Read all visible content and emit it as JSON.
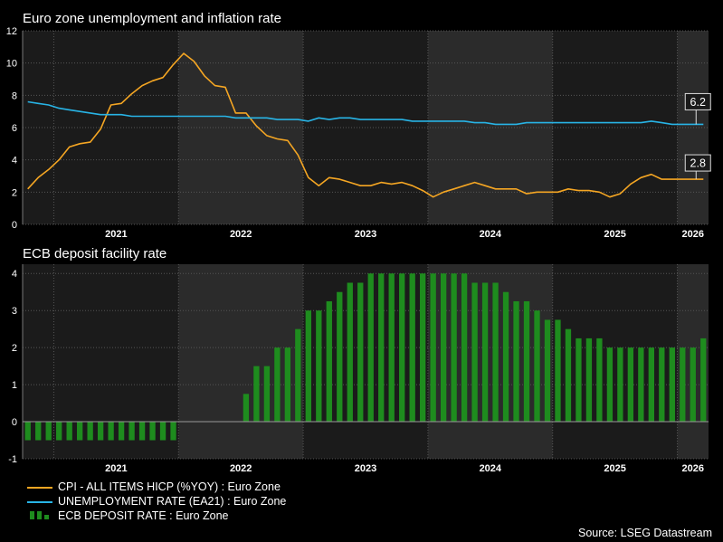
{
  "chart_data": [
    {
      "type": "line",
      "title": "Euro zone unemployment and inflation rate",
      "ylim": [
        0,
        12
      ],
      "yticks": [
        "0",
        "2",
        "4",
        "6",
        "8",
        "10",
        "12"
      ],
      "x_labels": [
        "2021",
        "2022",
        "2023",
        "2024",
        "2025",
        "2026"
      ],
      "x_range": [
        "2020-10",
        "2026-03"
      ],
      "series": [
        {
          "name": "CPI - ALL ITEMS HICP (%YOY) : Euro Zone",
          "color": "#f5a623",
          "last_value_label": "2.8",
          "x": [
            "2020-10",
            "2020-11",
            "2020-12",
            "2021-01",
            "2021-02",
            "2021-03",
            "2021-04",
            "2021-05",
            "2021-06",
            "2021-07",
            "2021-08",
            "2021-09",
            "2021-10",
            "2021-11",
            "2021-12",
            "2022-01",
            "2022-02",
            "2022-03",
            "2022-04",
            "2022-05",
            "2022-06",
            "2022-07",
            "2022-08",
            "2022-09",
            "2022-10",
            "2022-11",
            "2022-12",
            "2023-01",
            "2023-02",
            "2023-03",
            "2023-04",
            "2023-05",
            "2023-06",
            "2023-07",
            "2023-08",
            "2023-09",
            "2023-10",
            "2023-11",
            "2023-12",
            "2024-01",
            "2024-02",
            "2024-03",
            "2024-04",
            "2024-05",
            "2024-06",
            "2024-07",
            "2024-08",
            "2024-09",
            "2024-10",
            "2024-11",
            "2024-12",
            "2025-01",
            "2025-02",
            "2025-03",
            "2025-04",
            "2025-05",
            "2025-06",
            "2025-07",
            "2025-08",
            "2025-09",
            "2025-10",
            "2025-11",
            "2025-12",
            "2026-01",
            "2026-02",
            "2026-03"
          ],
          "values": [
            2.2,
            2.9,
            3.4,
            4.0,
            4.8,
            5.0,
            5.1,
            5.9,
            7.4,
            7.5,
            8.1,
            8.6,
            8.9,
            9.1,
            9.9,
            10.6,
            10.1,
            9.2,
            8.6,
            8.5,
            6.9,
            6.9,
            6.1,
            5.5,
            5.3,
            5.2,
            4.3,
            2.9,
            2.4,
            2.9,
            2.8,
            2.6,
            2.4,
            2.4,
            2.6,
            2.5,
            2.6,
            2.4,
            2.1,
            1.7,
            2.0,
            2.2,
            2.4,
            2.6,
            2.4,
            2.2,
            2.2,
            2.2,
            1.9,
            2.0,
            2.0,
            2.0,
            2.2,
            2.1,
            2.1,
            2.0,
            1.7,
            1.9,
            2.5,
            2.9,
            3.1,
            2.8,
            2.8,
            2.8,
            2.8,
            2.8
          ]
        },
        {
          "name": "UNEMPLOYMENT RATE (EA21) : Euro Zone",
          "color": "#28b4e6",
          "last_value_label": "6.2",
          "x": [
            "2020-10",
            "2020-11",
            "2020-12",
            "2021-01",
            "2021-02",
            "2021-03",
            "2021-04",
            "2021-05",
            "2021-06",
            "2021-07",
            "2021-08",
            "2021-09",
            "2021-10",
            "2021-11",
            "2021-12",
            "2022-01",
            "2022-02",
            "2022-03",
            "2022-04",
            "2022-05",
            "2022-06",
            "2022-07",
            "2022-08",
            "2022-09",
            "2022-10",
            "2022-11",
            "2022-12",
            "2023-01",
            "2023-02",
            "2023-03",
            "2023-04",
            "2023-05",
            "2023-06",
            "2023-07",
            "2023-08",
            "2023-09",
            "2023-10",
            "2023-11",
            "2023-12",
            "2024-01",
            "2024-02",
            "2024-03",
            "2024-04",
            "2024-05",
            "2024-06",
            "2024-07",
            "2024-08",
            "2024-09",
            "2024-10",
            "2024-11",
            "2024-12",
            "2025-01",
            "2025-02",
            "2025-03",
            "2025-04",
            "2025-05",
            "2025-06",
            "2025-07",
            "2025-08",
            "2025-09",
            "2025-10",
            "2025-11",
            "2025-12",
            "2026-01",
            "2026-02",
            "2026-03"
          ],
          "values": [
            7.6,
            7.5,
            7.4,
            7.2,
            7.1,
            7.0,
            6.9,
            6.8,
            6.8,
            6.8,
            6.7,
            6.7,
            6.7,
            6.7,
            6.7,
            6.7,
            6.7,
            6.7,
            6.7,
            6.7,
            6.6,
            6.6,
            6.6,
            6.6,
            6.5,
            6.5,
            6.5,
            6.4,
            6.6,
            6.5,
            6.6,
            6.6,
            6.5,
            6.5,
            6.5,
            6.5,
            6.5,
            6.4,
            6.4,
            6.4,
            6.4,
            6.4,
            6.4,
            6.3,
            6.3,
            6.2,
            6.2,
            6.2,
            6.3,
            6.3,
            6.3,
            6.3,
            6.3,
            6.3,
            6.3,
            6.3,
            6.3,
            6.3,
            6.3,
            6.3,
            6.4,
            6.3,
            6.2,
            6.2,
            6.2,
            6.2
          ]
        }
      ]
    },
    {
      "type": "bar",
      "title": "ECB deposit facility rate",
      "ylim": [
        -1,
        4.25
      ],
      "yticks": [
        "-1",
        "0",
        "1",
        "2",
        "3",
        "4"
      ],
      "x_labels": [
        "2021",
        "2022",
        "2023",
        "2024",
        "2025",
        "2026"
      ],
      "x_range": [
        "2020-10",
        "2026-03"
      ],
      "series": [
        {
          "name": "ECB DEPOSIT RATE : Euro Zone",
          "color": "#1e8c1e",
          "x": [
            "2020-10",
            "2020-11",
            "2020-12",
            "2021-01",
            "2021-02",
            "2021-03",
            "2021-04",
            "2021-05",
            "2021-06",
            "2021-07",
            "2021-08",
            "2021-09",
            "2021-10",
            "2021-11",
            "2021-12",
            "2022-01",
            "2022-02",
            "2022-03",
            "2022-04",
            "2022-05",
            "2022-06",
            "2022-07",
            "2022-08",
            "2022-09",
            "2022-10",
            "2022-11",
            "2022-12",
            "2023-01",
            "2023-02",
            "2023-03",
            "2023-04",
            "2023-05",
            "2023-06",
            "2023-07",
            "2023-08",
            "2023-09",
            "2023-10",
            "2023-11",
            "2023-12",
            "2024-01",
            "2024-02",
            "2024-03",
            "2024-04",
            "2024-05",
            "2024-06",
            "2024-07",
            "2024-08",
            "2024-09",
            "2024-10",
            "2024-11",
            "2024-12",
            "2025-01",
            "2025-02",
            "2025-03",
            "2025-04",
            "2025-05",
            "2025-06",
            "2025-07",
            "2025-08",
            "2025-09",
            "2025-10",
            "2025-11",
            "2025-12",
            "2026-01",
            "2026-02",
            "2026-03"
          ],
          "values": [
            -0.5,
            -0.5,
            -0.5,
            -0.5,
            -0.5,
            -0.5,
            -0.5,
            -0.5,
            -0.5,
            -0.5,
            -0.5,
            -0.5,
            -0.5,
            -0.5,
            -0.5,
            0,
            0,
            0,
            0,
            0,
            0,
            0.75,
            1.5,
            1.5,
            2,
            2,
            2.5,
            3,
            3,
            3.25,
            3.5,
            3.75,
            3.75,
            4,
            4,
            4,
            4,
            4,
            4,
            4,
            4,
            4,
            4,
            3.75,
            3.75,
            3.75,
            3.5,
            3.25,
            3.25,
            3,
            2.75,
            2.75,
            2.5,
            2.25,
            2.25,
            2.25,
            2,
            2,
            2,
            2,
            2,
            2,
            2,
            2,
            2,
            2.25
          ]
        }
      ]
    }
  ],
  "legend": {
    "cpi_label": "CPI - ALL ITEMS HICP (%YOY) : Euro Zone",
    "unemp_label": "UNEMPLOYMENT RATE (EA21) : Euro Zone",
    "ecb_label": "ECB DEPOSIT RATE : Euro Zone"
  },
  "source": "Source: LSEG Datastream"
}
